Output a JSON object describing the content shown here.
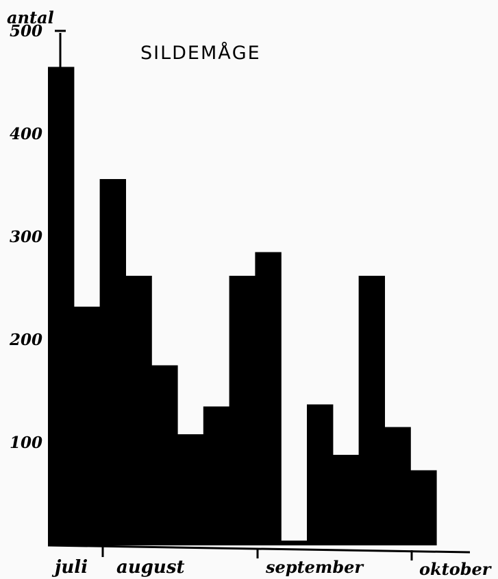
{
  "chart_data": {
    "type": "bar",
    "title": "SILDEMÅGE",
    "ylabel": "antal",
    "xlabel": "",
    "ylim": [
      0,
      510
    ],
    "yticks": [
      100,
      200,
      300,
      400,
      500
    ],
    "ytick_labels": [
      "100",
      "200",
      "300",
      "400",
      "500"
    ],
    "values": [
      465,
      232,
      356,
      262,
      175,
      108,
      135,
      262,
      285,
      0,
      137,
      88,
      262,
      115,
      73
    ],
    "months": [
      "juli",
      "august",
      "september",
      "oktober"
    ],
    "grid": false,
    "legend": "none",
    "bar_color": "#000000"
  }
}
